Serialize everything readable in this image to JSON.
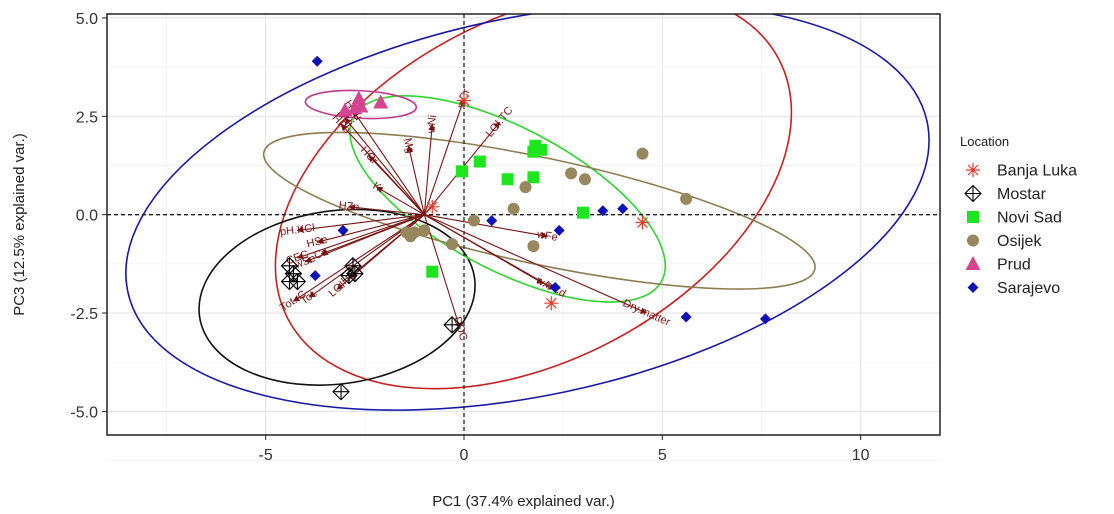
{
  "chart_data": {
    "type": "scatter",
    "title": "",
    "xlabel": "PC1 (37.4% explained var.)",
    "ylabel": "PC3 (12.5% explained var.)",
    "xlim": [
      -9.0,
      12.0
    ],
    "ylim": [
      -5.6,
      5.1
    ],
    "xticks": [
      -5,
      0,
      5,
      10
    ],
    "yticks": [
      -5.0,
      -2.5,
      0.0,
      2.5,
      5.0
    ],
    "xtick_labels": [
      "-5",
      "0",
      "5",
      "10"
    ],
    "ytick_labels": [
      "-5.0",
      "-2.5",
      "0.0",
      "2.5",
      "5.0"
    ],
    "grid": true,
    "legend_position": "right",
    "legend_title": "Location",
    "series": [
      {
        "name": "Banja Luka",
        "color": "#e23b2a",
        "marker": "asterisk",
        "points": [
          [
            0.0,
            2.9
          ],
          [
            -0.8,
            0.2
          ],
          [
            2.2,
            -2.25
          ],
          [
            4.5,
            -0.2
          ]
        ]
      },
      {
        "name": "Mostar",
        "color": "#000000",
        "marker": "diamond-plus",
        "points": [
          [
            -4.4,
            -1.3
          ],
          [
            -4.3,
            -1.5
          ],
          [
            -4.2,
            -1.7
          ],
          [
            -4.4,
            -1.7
          ],
          [
            -2.8,
            -1.3
          ],
          [
            -2.75,
            -1.5
          ],
          [
            -2.9,
            -1.55
          ],
          [
            -0.3,
            -2.8
          ],
          [
            -3.1,
            -4.5
          ]
        ]
      },
      {
        "name": "Novi Sad",
        "color": "#1ee61e",
        "marker": "square",
        "points": [
          [
            -0.05,
            1.1
          ],
          [
            0.4,
            1.35
          ],
          [
            1.1,
            0.9
          ],
          [
            1.75,
            1.6
          ],
          [
            1.8,
            1.75
          ],
          [
            1.95,
            1.65
          ],
          [
            1.75,
            0.95
          ],
          [
            3.0,
            0.05
          ],
          [
            -0.8,
            -1.45
          ]
        ]
      },
      {
        "name": "Osijek",
        "color": "#97875c",
        "marker": "circle",
        "points": [
          [
            4.5,
            1.55
          ],
          [
            2.7,
            1.05
          ],
          [
            3.05,
            0.9
          ],
          [
            1.55,
            0.7
          ],
          [
            1.25,
            0.15
          ],
          [
            5.6,
            0.4
          ],
          [
            0.25,
            -0.15
          ],
          [
            -1.0,
            -0.4
          ],
          [
            -1.25,
            -0.45
          ],
          [
            -1.45,
            -0.45
          ],
          [
            -1.35,
            -0.55
          ],
          [
            -0.3,
            -0.75
          ],
          [
            1.75,
            -0.8
          ]
        ]
      },
      {
        "name": "Prud",
        "color": "#d3458f",
        "marker": "triangle",
        "points": [
          [
            -3.0,
            2.65
          ],
          [
            -2.75,
            2.7
          ],
          [
            -2.6,
            2.75
          ],
          [
            -2.65,
            2.95
          ],
          [
            -2.1,
            2.85
          ]
        ]
      },
      {
        "name": "Sarajevo",
        "color": "#1010b8",
        "marker": "diamond",
        "points": [
          [
            -3.7,
            3.9
          ],
          [
            -3.05,
            -0.4
          ],
          [
            -3.75,
            -1.55
          ],
          [
            0.7,
            -0.15
          ],
          [
            2.4,
            -0.4
          ],
          [
            3.5,
            0.1
          ],
          [
            4.0,
            0.15
          ],
          [
            2.3,
            -1.85
          ],
          [
            5.6,
            -2.6
          ],
          [
            7.6,
            -2.65
          ]
        ]
      }
    ],
    "ellipses": [
      {
        "name": "Banja Luka",
        "color": "#c8201e",
        "cx": 1.75,
        "cy": 0.65,
        "rx": 7.0,
        "ry": 4.35,
        "angle_deg": -28
      },
      {
        "name": "Mostar",
        "color": "#111111",
        "cx": -3.2,
        "cy": -2.1,
        "rx": 3.5,
        "ry": 2.2,
        "angle_deg": -8
      },
      {
        "name": "Novi Sad",
        "color": "#2ed52e",
        "cx": 1.1,
        "cy": 0.4,
        "rx": 4.4,
        "ry": 1.8,
        "angle_deg": 28
      },
      {
        "name": "Osijek",
        "color": "#8f7d52",
        "cx": 1.9,
        "cy": 0.1,
        "rx": 7.1,
        "ry": 1.35,
        "angle_deg": 12
      },
      {
        "name": "Prud",
        "color": "#c03b8c",
        "cx": -2.6,
        "cy": 2.8,
        "rx": 1.4,
        "ry": 0.35,
        "angle_deg": 3
      },
      {
        "name": "Sarajevo",
        "color": "#1919a9",
        "cx": 1.6,
        "cy": 0.2,
        "rx": 10.3,
        "ry": 4.8,
        "angle_deg": -12
      }
    ],
    "loadings": {
      "color": "#7a1414",
      "origin": [
        -1.0,
        0.0
      ],
      "vectors": [
        {
          "label": "LOI.TC",
          "x": 0.9,
          "y": 2.35
        },
        {
          "label": "wCr",
          "x": 0.0,
          "y": 2.95
        },
        {
          "label": "wNi",
          "x": -0.8,
          "y": 2.3
        },
        {
          "label": "Mg",
          "x": -1.4,
          "y": 1.75
        },
        {
          "label": "HCu",
          "x": -2.8,
          "y": 2.65
        },
        {
          "label": "HPb",
          "x": -3.1,
          "y": 2.3
        },
        {
          "label": "HNi",
          "x": -3.0,
          "y": 2.45
        },
        {
          "label": "HCr",
          "x": -2.4,
          "y": 1.5
        },
        {
          "label": "K",
          "x": -2.2,
          "y": 0.7
        },
        {
          "label": "HZn",
          "x": -2.9,
          "y": 0.2
        },
        {
          "label": "pH.KCl",
          "x": -4.2,
          "y": -0.4
        },
        {
          "label": "HSe",
          "x": -3.7,
          "y": -0.7
        },
        {
          "label": "Ca",
          "x": -3.6,
          "y": -1.0
        },
        {
          "label": "CEC",
          "x": -4.2,
          "y": -1.1
        },
        {
          "label": "wSe",
          "x": -4.0,
          "y": -1.2
        },
        {
          "label": "HC",
          "x": -2.9,
          "y": -1.6
        },
        {
          "label": "LOI",
          "x": -3.2,
          "y": -1.9
        },
        {
          "label": "Tot.",
          "x": -3.9,
          "y": -2.1
        },
        {
          "label": "Tot..C",
          "x": -4.3,
          "y": -2.2
        },
        {
          "label": "DOC",
          "x": -0.1,
          "y": -2.9
        },
        {
          "label": "wFe",
          "x": 2.1,
          "y": -0.55
        },
        {
          "label": "wCd",
          "x": 2.3,
          "y": -1.9
        },
        {
          "label": "wA",
          "x": 2.0,
          "y": -1.75
        },
        {
          "label": "Dry.matter",
          "x": 4.6,
          "y": -2.5
        }
      ]
    }
  }
}
